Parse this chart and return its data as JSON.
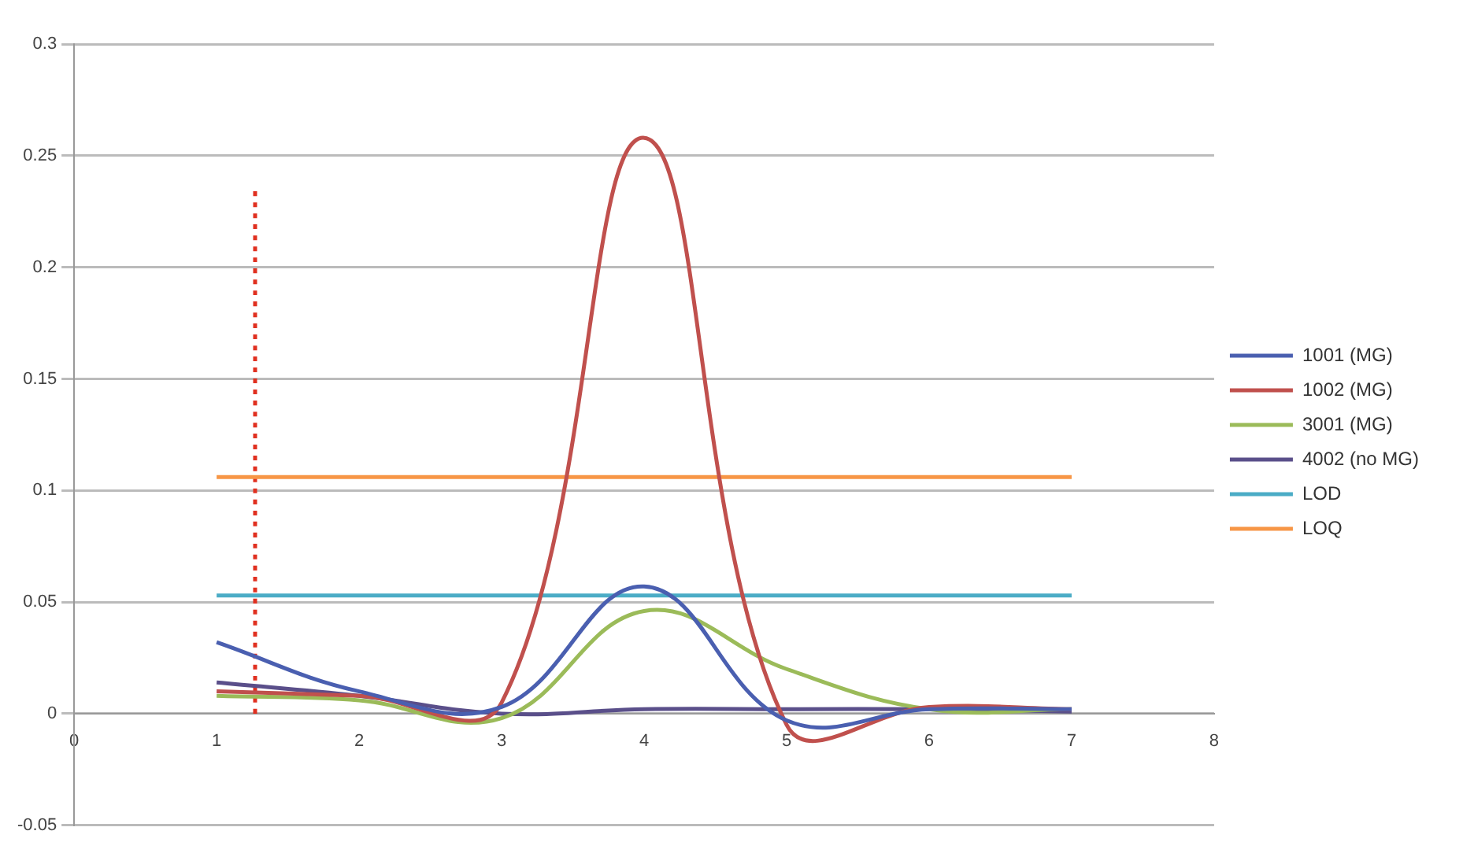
{
  "chart_data": {
    "type": "line",
    "x": [
      1,
      2,
      3,
      4,
      5,
      6,
      7
    ],
    "series": [
      {
        "name": "1001 (MG)",
        "color": "#4a5fb0",
        "values": [
          0.032,
          0.01,
          0.003,
          0.057,
          -0.003,
          0.002,
          0.002
        ]
      },
      {
        "name": "1002 (MG)",
        "color": "#c0504d",
        "values": [
          0.01,
          0.008,
          0.005,
          0.258,
          -0.005,
          0.003,
          0.002
        ]
      },
      {
        "name": "3001 (MG)",
        "color": "#9bbb59",
        "values": [
          0.008,
          0.006,
          -0.002,
          0.046,
          0.02,
          0.002,
          0.002
        ]
      },
      {
        "name": "4002 (no MG)",
        "color": "#5a4f8a",
        "values": [
          0.014,
          0.008,
          0.0,
          0.002,
          0.002,
          0.002,
          0.001
        ]
      },
      {
        "name": "LOD",
        "color": "#4bacc6",
        "x": [
          1,
          7
        ],
        "values": [
          0.053,
          0.053
        ]
      },
      {
        "name": "LOQ",
        "color": "#f79646",
        "x": [
          1,
          7
        ],
        "values": [
          0.106,
          0.106
        ]
      },
      {
        "color": "#e03020",
        "x": [
          1.27,
          1.27
        ],
        "values": [
          0,
          0.235
        ],
        "line_style": "dotted"
      }
    ],
    "xlim": [
      0,
      8
    ],
    "xticks": [
      0,
      1,
      2,
      3,
      4,
      5,
      6,
      7,
      8
    ],
    "ylim": [
      -0.05,
      0.3
    ],
    "yticks": [
      -0.05,
      0,
      0.05,
      0.1,
      0.15,
      0.2,
      0.25,
      0.3
    ],
    "grid": "y",
    "legend": "right",
    "marker": "none",
    "line_style": "solid"
  }
}
